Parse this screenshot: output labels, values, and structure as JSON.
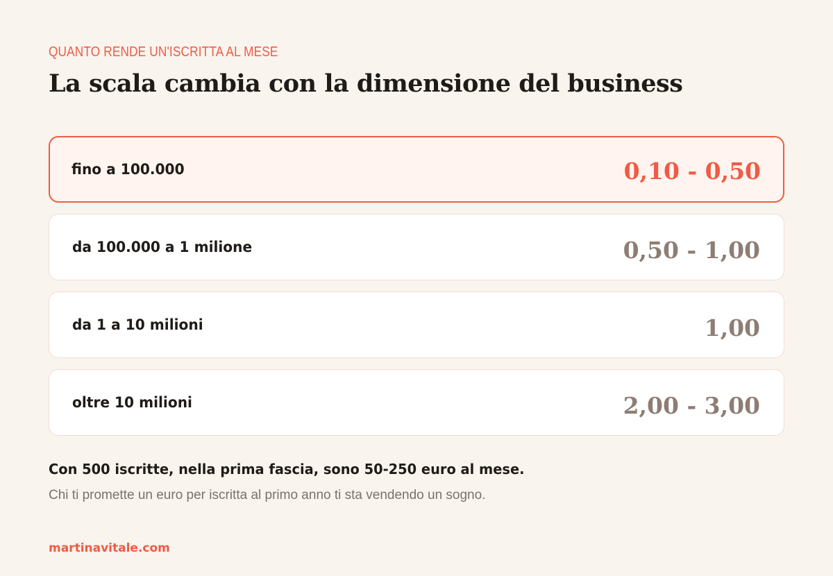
{
  "kicker": "QUANTO RENDE UN'ISCRITTA AL MESE",
  "headline": "La scala cambia con la dimensione del business",
  "tiers": [
    {
      "label": "fino a 100.000",
      "value": "0,10 - 0,50",
      "highlighted": true
    },
    {
      "label": "da 100.000 a 1 milione",
      "value": "0,50 - 1,00",
      "highlighted": false
    },
    {
      "label": "da 1 a 10 milioni",
      "value": "1,00",
      "highlighted": false
    },
    {
      "label": "oltre 10 milioni",
      "value": "2,00 - 3,00",
      "highlighted": false
    }
  ],
  "note": {
    "main": "Con 500 iscritte, nella prima fascia, sono 50-250 euro al mese.",
    "sub": "Chi ti promette un euro per iscritta al primo anno ti sta vendendo un sogno."
  },
  "footer": {
    "site": "martinavitale.com"
  },
  "colors": {
    "accent": "#ef5b45",
    "background": "#f9f4ee",
    "text": "#1f1b18",
    "muted_value": "#8d7d74"
  }
}
